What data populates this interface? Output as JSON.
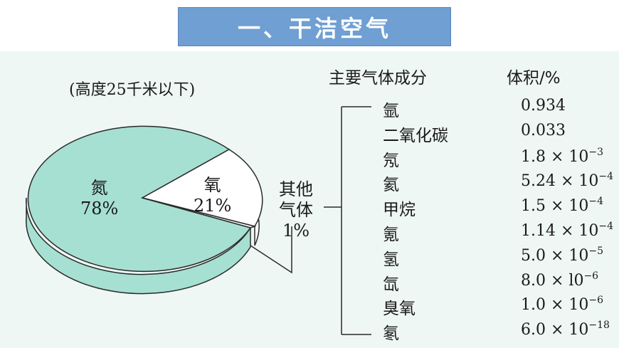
{
  "title": "一、干洁空气",
  "note": "(高度25千米以下)",
  "slices": {
    "nitrogen": {
      "name": "氮",
      "percent": "78%"
    },
    "oxygen": {
      "name": "氧",
      "percent": "21%"
    },
    "other": {
      "line1": "其他",
      "line2": "气体",
      "percent": "1%"
    }
  },
  "table": {
    "col_component": "主要气体成分",
    "col_volume": "体积/%",
    "rows": [
      {
        "name": "氩",
        "mantissa": "0.934",
        "exponent": ""
      },
      {
        "name": "二氧化碳",
        "mantissa": "0.033",
        "exponent": ""
      },
      {
        "name": "氖",
        "mantissa": "1.8 × 10",
        "exponent": "−3"
      },
      {
        "name": "氦",
        "mantissa": "5.24 × 10",
        "exponent": "−4"
      },
      {
        "name": "甲烷",
        "mantissa": "1.5 × 10",
        "exponent": "−4"
      },
      {
        "name": "氪",
        "mantissa": "1.14 × 10",
        "exponent": "−4"
      },
      {
        "name": "氢",
        "mantissa": "5.0 × 10",
        "exponent": "−5"
      },
      {
        "name": "氙",
        "mantissa": "8.0 × l0",
        "exponent": "−6"
      },
      {
        "name": "臭氧",
        "mantissa": "1.0 × 10",
        "exponent": "−6"
      },
      {
        "name": "氡",
        "mantissa": "6.0 × 10",
        "exponent": "−18"
      }
    ]
  },
  "colors": {
    "title_bg": "#6f9fd3",
    "panel_bg": "#eef7f4",
    "nitrogen_fill": "#a6e0d2",
    "oxygen_fill": "#ffffff"
  },
  "chart_data": {
    "type": "pie",
    "categories": [
      "氮",
      "氧",
      "其他气体"
    ],
    "values": [
      78,
      21,
      1
    ]
  }
}
